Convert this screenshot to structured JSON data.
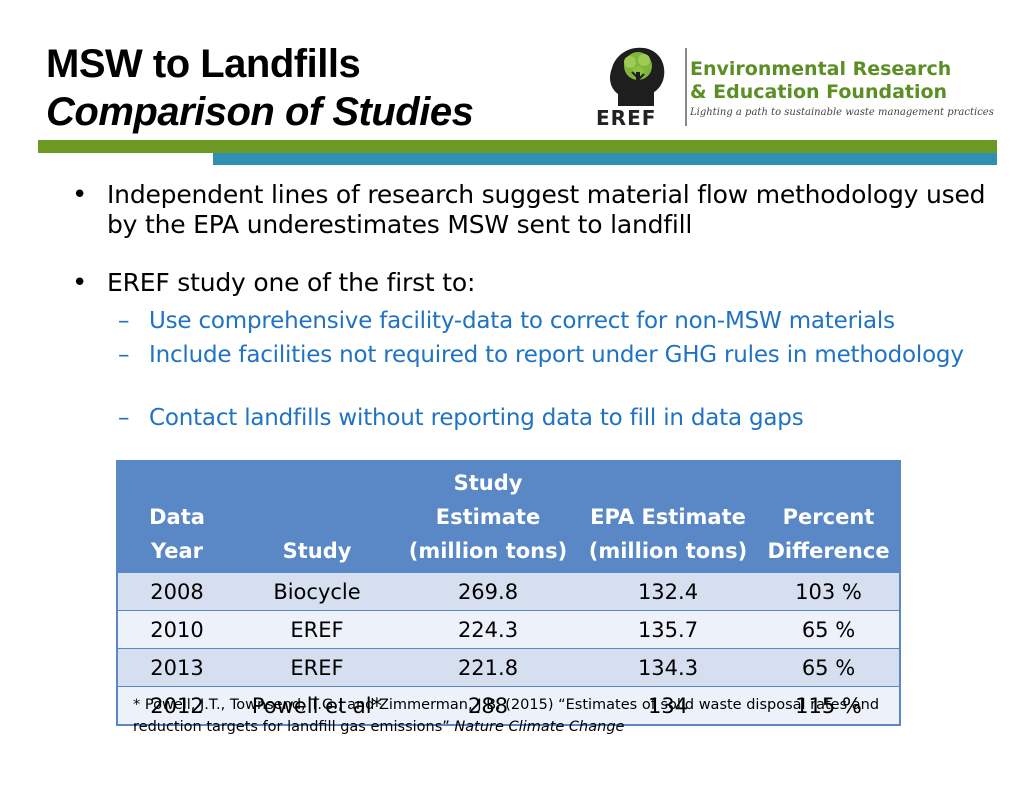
{
  "header": {
    "title": "MSW to Landfills",
    "subtitle": "Comparison of Studies"
  },
  "logo": {
    "abbr": "EREF",
    "org_line1": "Environmental Research",
    "org_line2": "& Education Foundation",
    "tagline": "Lighting a path to sustainable waste management practices",
    "icon": "tree-head-icon"
  },
  "colors": {
    "green_bar": "#6d9a23",
    "blue_bar": "#2f8fb4",
    "org_green": "#5b8f24",
    "sub_bullet_blue": "#1f73c2",
    "table_header": "#5a87c5"
  },
  "bullets": [
    {
      "text": "Independent lines of research suggest material flow methodology used by the EPA underestimates MSW sent to landfill"
    },
    {
      "text": "EREF study one of the first to:"
    }
  ],
  "sub_bullets": [
    "Use comprehensive facility-data to correct for non-MSW materials",
    "Include facilities not required to report under GHG rules in methodology",
    "Contact landfills without reporting data to fill in data gaps"
  ],
  "table": {
    "headers": [
      {
        "line1": "Data",
        "line2": "Year"
      },
      {
        "line1": "",
        "line2": "Study"
      },
      {
        "line1": "Study Estimate",
        "line2": "(million tons)"
      },
      {
        "line1": "EPA Estimate",
        "line2": "(million tons)"
      },
      {
        "line1": "Percent",
        "line2": "Difference"
      }
    ],
    "rows": [
      [
        "2008",
        "Biocycle",
        "269.8",
        "132.4",
        "103 %"
      ],
      [
        "2010",
        "EREF",
        "224.3",
        "135.7",
        "65 %"
      ],
      [
        "2013",
        "EREF",
        "221.8",
        "134.3",
        "65 %"
      ],
      [
        "2012",
        "Powell et al*",
        "288",
        "134",
        "115 %"
      ]
    ]
  },
  "footnote": {
    "text": "* Powell, J.T., Townsend, T.G., and Zimmerman, J.B. (2015) “Estimates of solid waste disposal rates and reduction targets for landfill gas emissions” ",
    "journal": "Nature Climate Change"
  }
}
